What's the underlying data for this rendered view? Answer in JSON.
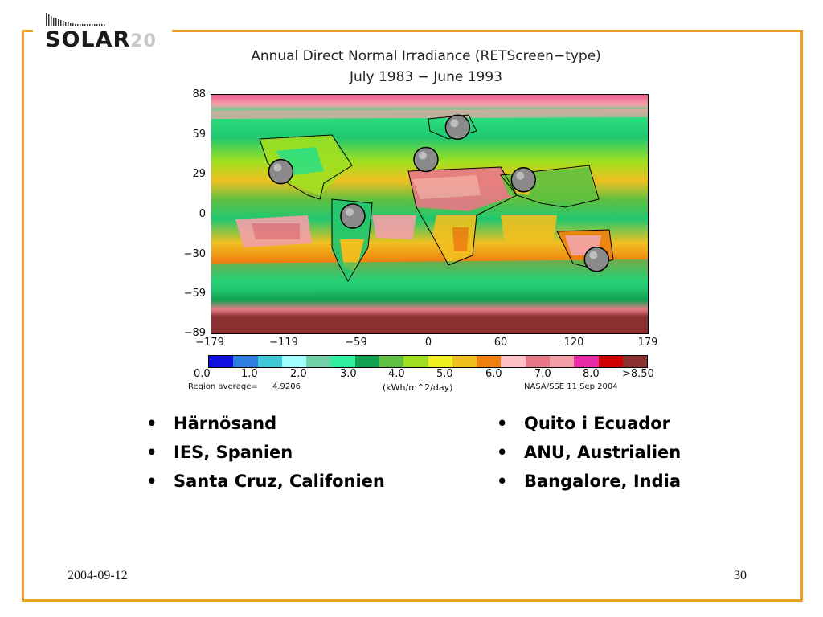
{
  "logo": {
    "word": "SOLAR",
    "number": "20"
  },
  "figure": {
    "title_line1": "Annual Direct Normal Irradiance (RETScreen−type)",
    "title_line2": "July 1983 − June 1993"
  },
  "map": {
    "y_ticks": [
      "88",
      "59",
      "29",
      "0",
      "−30",
      "−59",
      "−89"
    ],
    "x_ticks": [
      "−179",
      "−119",
      "−59",
      "0",
      "60",
      "120",
      "179"
    ],
    "lon_range": [
      -179,
      179
    ],
    "lat_range": [
      -89,
      88
    ],
    "markers": [
      {
        "site": "Härnösand",
        "lon": 23,
        "lat": 64
      },
      {
        "site": "IES, Spanien",
        "lon": -3,
        "lat": 40
      },
      {
        "site": "Santa Cruz, Califonien",
        "lon": -122,
        "lat": 31
      },
      {
        "site": "Quito i Ecuador",
        "lon": -63,
        "lat": -2
      },
      {
        "site": "ANU, Austrialien",
        "lon": 137,
        "lat": -34
      },
      {
        "site": "Bangalore, India",
        "lon": 77,
        "lat": 25
      }
    ],
    "marker_color": "#8a8a8a"
  },
  "colorbar": {
    "colors": [
      "#1010e0",
      "#2f7fe0",
      "#40c8d8",
      "#a0ffff",
      "#70d0a8",
      "#30f0a0",
      "#10a050",
      "#60c040",
      "#a0e020",
      "#f0f020",
      "#f0c020",
      "#f08010",
      "#ffc0c8",
      "#e87888",
      "#f4a0a8",
      "#e82ca8",
      "#d00000",
      "#8b3030"
    ],
    "tick_labels": [
      "0.0",
      "1.0",
      "2.0",
      "3.0",
      "4.0",
      "5.0",
      "6.0",
      "7.0",
      "8.0",
      ">8.50"
    ],
    "region_average_label": "Region average=",
    "region_average_value": "4.9206",
    "units": "(kWh/m^2/day)",
    "credit": "NASA/SSE  11 Sep 2004"
  },
  "bullets_left": [
    "Härnösand",
    "IES, Spanien",
    "Santa Cruz, Califonien"
  ],
  "bullets_right": [
    "Quito i Ecuador",
    "ANU, Austrialien",
    "Bangalore, India"
  ],
  "footer": {
    "date": "2004-09-12",
    "page": "30"
  },
  "accent_color": "#f0a020"
}
